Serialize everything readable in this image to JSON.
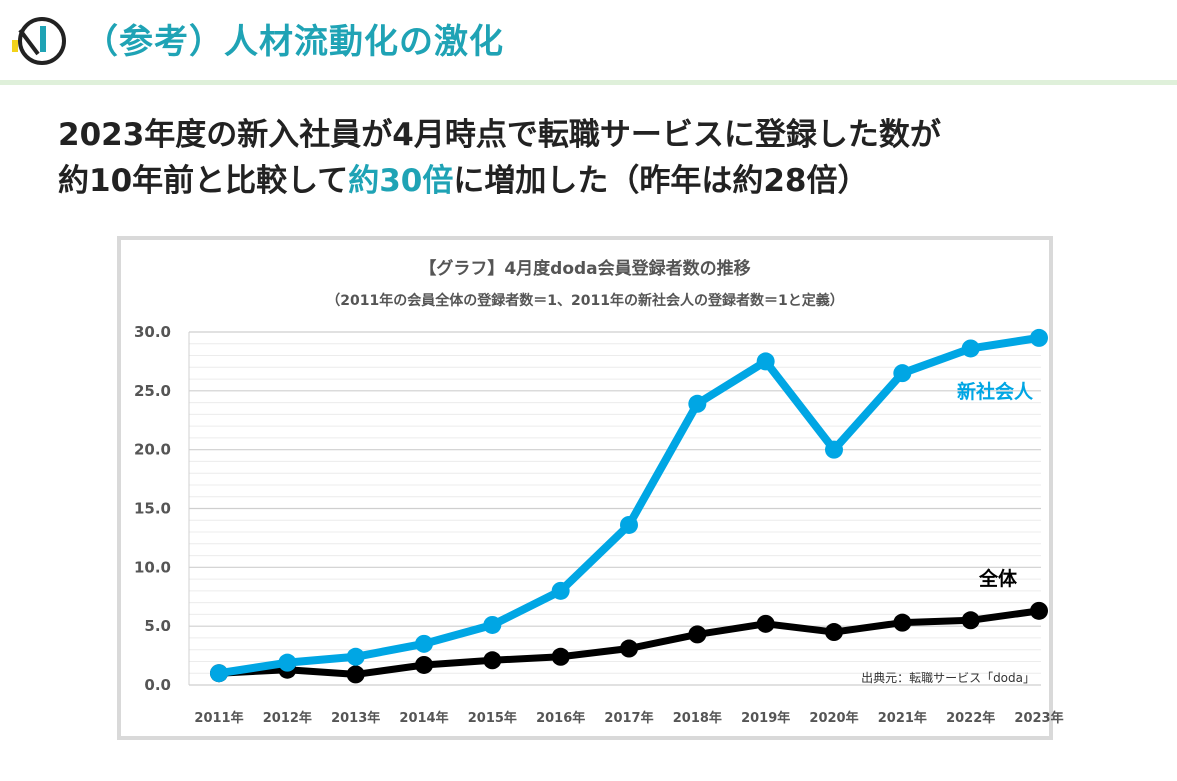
{
  "header": {
    "title": "（参考）人材流動化の激化",
    "brand_color": "#1fa3b5"
  },
  "headline": {
    "line1": "2023年度の新入社員が4月時点で転職サービスに登録した数が",
    "line2_pre": "約10年前と比較して",
    "line2_accent": "約30倍",
    "line2_post": "に増加した（昨年は約28倍）"
  },
  "chart_data": {
    "type": "line",
    "title": "【グラフ】4月度doda会員登録者数の推移",
    "subtitle": "（2011年の会員全体の登録者数＝1、2011年の新社会人の登録者数＝1と定義）",
    "categories": [
      "2011年",
      "2012年",
      "2013年",
      "2014年",
      "2015年",
      "2016年",
      "2017年",
      "2018年",
      "2019年",
      "2020年",
      "2021年",
      "2022年",
      "2023年"
    ],
    "series": [
      {
        "name": "新社会人",
        "color": "#00a6e4",
        "values": [
          1.0,
          1.9,
          2.4,
          3.5,
          5.1,
          8.0,
          13.6,
          23.9,
          27.5,
          20.0,
          26.5,
          28.6,
          29.5
        ]
      },
      {
        "name": "全体",
        "color": "#000000",
        "values": [
          1.0,
          1.3,
          0.9,
          1.7,
          2.1,
          2.4,
          3.1,
          4.3,
          5.2,
          4.5,
          5.3,
          5.5,
          6.3
        ]
      }
    ],
    "yticks": [
      "0.0",
      "5.0",
      "10.0",
      "15.0",
      "20.0",
      "25.0",
      "30.0"
    ],
    "ylim": [
      0,
      30
    ],
    "grid": true,
    "source": "出典元：転職サービス「doda」"
  }
}
